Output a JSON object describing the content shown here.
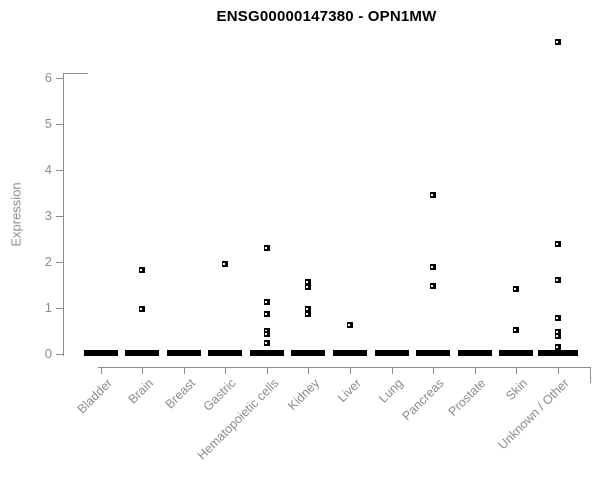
{
  "chart_data": {
    "type": "scatter",
    "title": "ENSG00000147380 - OPN1MW",
    "ylabel": "Expression",
    "xlabel": "",
    "yticks": [
      0,
      1,
      2,
      3,
      4,
      5,
      6
    ],
    "ylim": [
      0,
      6.9
    ],
    "grid": false,
    "legend": "none",
    "marker": "small-open-square",
    "categories": [
      "Bladder",
      "Brain",
      "Breast",
      "Gastric",
      "Hematopoietic cells",
      "Kidney",
      "Liver",
      "Lung",
      "Pancreas",
      "Prostate",
      "Skin",
      "Unknown / Other"
    ],
    "series": [
      {
        "category": "Bladder",
        "points": [],
        "zero_dash": true
      },
      {
        "category": "Brain",
        "points": [
          1.82,
          0.96
        ],
        "zero_dash": true
      },
      {
        "category": "Breast",
        "points": [],
        "zero_dash": true
      },
      {
        "category": "Gastric",
        "points": [
          1.95
        ],
        "zero_dash": true
      },
      {
        "category": "Hematopoietic cells",
        "points": [
          2.29,
          1.13,
          0.85,
          0.49,
          0.42,
          0.22
        ],
        "zero_dash": true
      },
      {
        "category": "Kidney",
        "points": [
          1.56,
          1.44,
          0.97,
          0.86
        ],
        "zero_dash": true
      },
      {
        "category": "Liver",
        "points": [
          0.62
        ],
        "zero_dash": true
      },
      {
        "category": "Lung",
        "points": [],
        "zero_dash": true
      },
      {
        "category": "Pancreas",
        "points": [
          3.45,
          1.87,
          1.47
        ],
        "zero_dash": true
      },
      {
        "category": "Prostate",
        "points": [],
        "zero_dash": true
      },
      {
        "category": "Skin",
        "points": [
          1.4,
          0.51
        ],
        "zero_dash": true
      },
      {
        "category": "Unknown / Other",
        "points": [
          6.77,
          2.38,
          1.6,
          0.77,
          0.47,
          0.37,
          0.15
        ],
        "zero_dash": true,
        "dash_wide": true
      }
    ],
    "colors": {
      "marker": "#000000",
      "axis": "#8c8c8c",
      "tick_text": "#8c8c8c",
      "title_text": "#000000",
      "background": "#ffffff"
    }
  }
}
